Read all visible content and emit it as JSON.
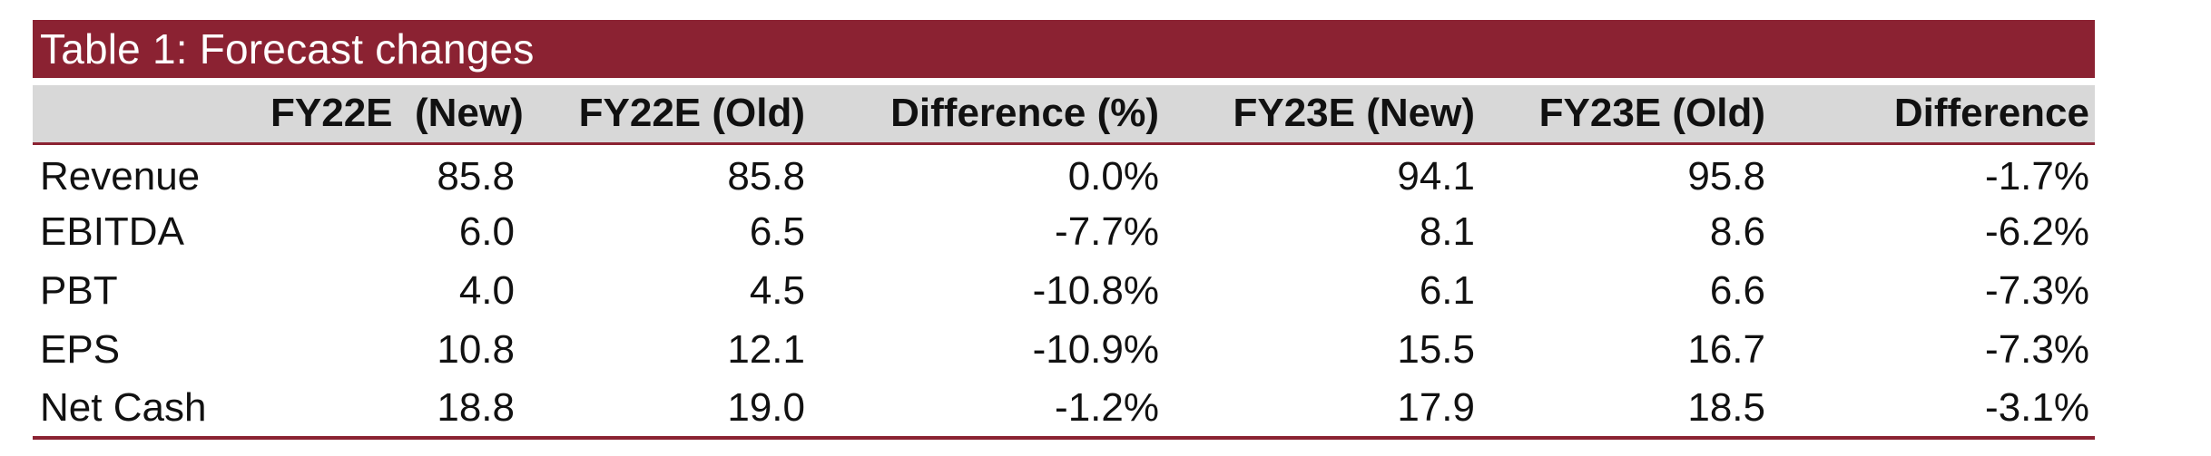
{
  "table": {
    "title": "Table 1: Forecast changes",
    "headers": [
      "",
      "FY22E  (New)",
      "FY22E (Old)",
      "Difference (%)",
      "FY23E (New)",
      "FY23E (Old)",
      "Difference"
    ],
    "rows": [
      [
        "Revenue",
        "85.8",
        "85.8",
        "0.0%",
        "94.1",
        "95.8",
        "-1.7%"
      ],
      [
        "EBITDA",
        "6.0",
        "6.5",
        "-7.7%",
        "8.1",
        "8.6",
        "-6.2%"
      ],
      [
        "PBT",
        "4.0",
        "4.5",
        "-10.8%",
        "6.1",
        "6.6",
        "-7.3%"
      ],
      [
        "EPS",
        "10.8",
        "12.1",
        "-10.9%",
        "15.5",
        "16.7",
        "-7.3%"
      ],
      [
        "Net Cash",
        "18.8",
        "19.0",
        "-1.2%",
        "17.9",
        "18.5",
        "-3.1%"
      ]
    ],
    "colors": {
      "accent": "#8b2232",
      "header_bg": "#d8d8d8"
    }
  }
}
